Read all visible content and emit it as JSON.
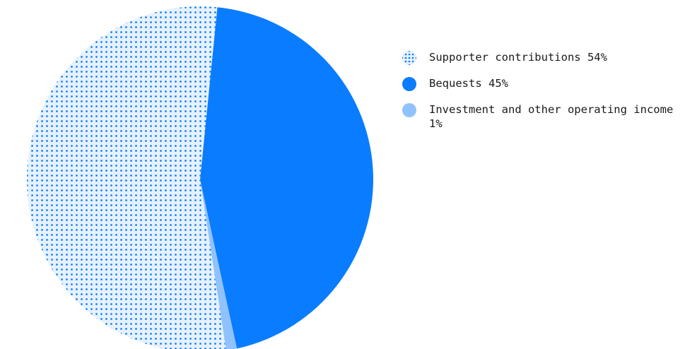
{
  "chart_data": {
    "type": "pie",
    "slices": [
      {
        "label": "Supporter contributions 54%",
        "value": 54,
        "color": "#0a7cff",
        "pattern": "dots"
      },
      {
        "label": "Bequests 45%",
        "value": 45,
        "color": "#0a7cff",
        "pattern": "solid"
      },
      {
        "label": "Investment and other operating income 1%",
        "value": 1,
        "color": "#8fc2ff",
        "pattern": "solid"
      }
    ],
    "legend_position": "right"
  }
}
